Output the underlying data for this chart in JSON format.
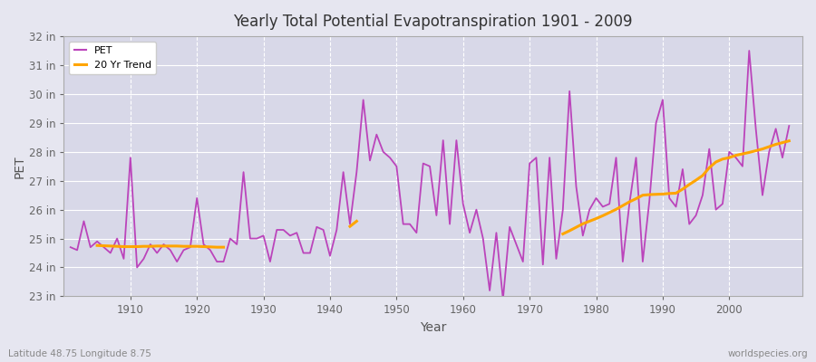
{
  "title": "Yearly Total Potential Evapotranspiration 1901 - 2009",
  "xlabel": "Year",
  "ylabel": "PET",
  "subtitle_left": "Latitude 48.75 Longitude 8.75",
  "subtitle_right": "worldspecies.org",
  "pet_color": "#BB44BB",
  "trend_color": "#FFA500",
  "bg_color": "#E6E6F0",
  "plot_bg_color": "#D8D8E8",
  "ylim": [
    23,
    32
  ],
  "ytick_labels": [
    "23 in",
    "24 in",
    "25 in",
    "26 in",
    "27 in",
    "28 in",
    "29 in",
    "30 in",
    "31 in",
    "32 in"
  ],
  "ytick_values": [
    23,
    24,
    25,
    26,
    27,
    28,
    29,
    30,
    31,
    32
  ],
  "years": [
    1901,
    1902,
    1903,
    1904,
    1905,
    1906,
    1907,
    1908,
    1909,
    1910,
    1911,
    1912,
    1913,
    1914,
    1915,
    1916,
    1917,
    1918,
    1919,
    1920,
    1921,
    1922,
    1923,
    1924,
    1925,
    1926,
    1927,
    1928,
    1929,
    1930,
    1931,
    1932,
    1933,
    1934,
    1935,
    1936,
    1937,
    1938,
    1939,
    1940,
    1941,
    1942,
    1943,
    1944,
    1945,
    1946,
    1947,
    1948,
    1949,
    1950,
    1951,
    1952,
    1953,
    1954,
    1955,
    1956,
    1957,
    1958,
    1959,
    1960,
    1961,
    1962,
    1963,
    1964,
    1965,
    1966,
    1967,
    1968,
    1969,
    1970,
    1971,
    1972,
    1973,
    1974,
    1975,
    1976,
    1977,
    1978,
    1979,
    1980,
    1981,
    1982,
    1983,
    1984,
    1985,
    1986,
    1987,
    1988,
    1989,
    1990,
    1991,
    1992,
    1993,
    1994,
    1995,
    1996,
    1997,
    1998,
    1999,
    2000,
    2001,
    2002,
    2003,
    2004,
    2005,
    2006,
    2007,
    2008,
    2009
  ],
  "pet_values": [
    24.7,
    24.6,
    25.6,
    24.7,
    24.9,
    24.7,
    24.5,
    25.0,
    24.3,
    27.8,
    24.0,
    24.3,
    24.8,
    24.5,
    24.8,
    24.6,
    24.2,
    24.6,
    24.7,
    26.4,
    24.8,
    24.6,
    24.2,
    24.2,
    25.0,
    24.8,
    27.3,
    25.0,
    25.0,
    25.1,
    24.2,
    25.3,
    25.3,
    25.1,
    25.2,
    24.5,
    24.5,
    25.4,
    25.3,
    24.4,
    25.3,
    27.3,
    25.5,
    27.3,
    29.8,
    27.7,
    28.6,
    28.0,
    27.8,
    27.5,
    25.5,
    25.5,
    25.2,
    27.6,
    27.5,
    25.8,
    28.4,
    25.5,
    28.4,
    26.2,
    25.2,
    26.0,
    25.0,
    23.2,
    25.2,
    22.9,
    25.4,
    24.8,
    24.2,
    27.6,
    27.8,
    24.1,
    27.8,
    24.3,
    26.0,
    30.1,
    26.8,
    25.1,
    26.0,
    26.4,
    26.1,
    26.2,
    27.8,
    24.2,
    26.2,
    27.8,
    24.2,
    26.3,
    29.0,
    29.8,
    26.4,
    26.1,
    27.4,
    25.5,
    25.8,
    26.5,
    28.1,
    26.0,
    26.2,
    28.0,
    27.8,
    27.5,
    31.5,
    28.8,
    26.5,
    28.0,
    28.8,
    27.8,
    28.9
  ],
  "trend_segments": [
    {
      "years": [
        1905,
        1906,
        1907,
        1908,
        1909,
        1910,
        1911,
        1912,
        1913,
        1914,
        1915,
        1916,
        1917,
        1918,
        1919,
        1920,
        1921,
        1922,
        1923,
        1924
      ],
      "values": [
        24.76,
        24.75,
        24.74,
        24.73,
        24.72,
        24.72,
        24.72,
        24.73,
        24.73,
        24.74,
        24.74,
        24.74,
        24.74,
        24.73,
        24.73,
        24.73,
        24.72,
        24.71,
        24.7,
        24.7
      ]
    },
    {
      "years": [
        1943,
        1944
      ],
      "values": [
        25.42,
        25.6
      ]
    },
    {
      "years": [
        1975,
        1976,
        1977,
        1978,
        1979,
        1980,
        1981,
        1982,
        1983,
        1984,
        1985,
        1986,
        1987,
        1988,
        1989,
        1990,
        1991,
        1992,
        1993,
        1994,
        1995,
        1996,
        1997,
        1998,
        1999,
        2000,
        2001,
        2002,
        2003,
        2004,
        2005,
        2006,
        2007,
        2008,
        2009
      ],
      "values": [
        25.16,
        25.27,
        25.39,
        25.51,
        25.6,
        25.69,
        25.79,
        25.9,
        26.01,
        26.14,
        26.27,
        26.38,
        26.5,
        26.52,
        26.53,
        26.54,
        26.56,
        26.57,
        26.71,
        26.87,
        27.02,
        27.18,
        27.45,
        27.65,
        27.75,
        27.8,
        27.88,
        27.93,
        27.98,
        28.04,
        28.1,
        28.18,
        28.26,
        28.32,
        28.38
      ]
    }
  ]
}
